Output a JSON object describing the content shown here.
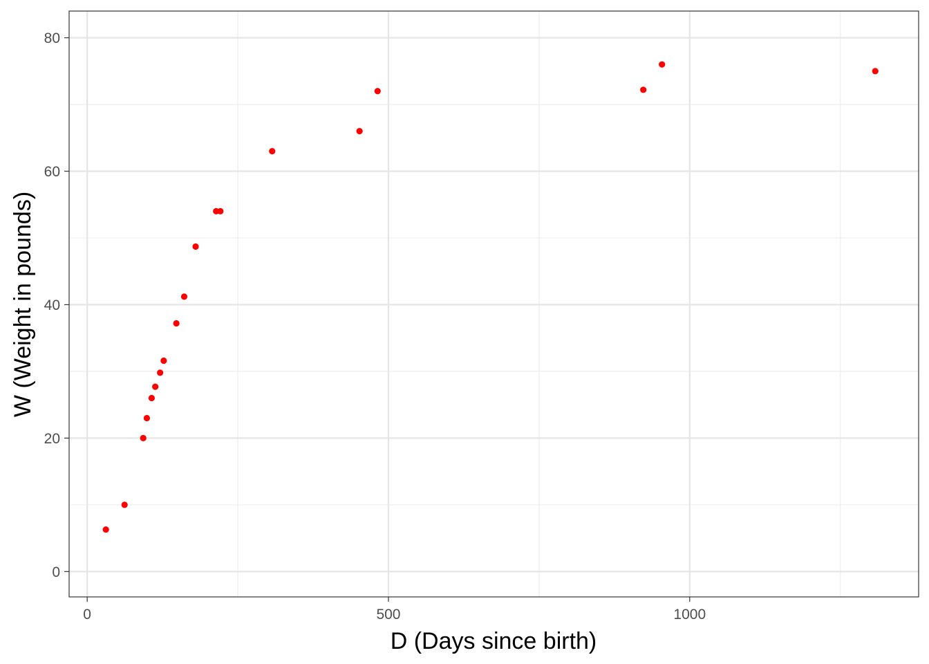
{
  "chart_data": {
    "type": "scatter",
    "title": "",
    "xlabel": "D (Days since birth)",
    "ylabel": "W (Weight in pounds)",
    "xlim": [
      -30,
      1380
    ],
    "ylim": [
      -3.8,
      84
    ],
    "x_ticks": [
      0,
      500,
      1000
    ],
    "x_tick_labels": [
      "0",
      "500",
      "1000"
    ],
    "x_minor_ticks": [
      250,
      750,
      1250
    ],
    "y_ticks": [
      0,
      20,
      40,
      60,
      80
    ],
    "y_tick_labels": [
      "0",
      "20",
      "40",
      "60",
      "80"
    ],
    "y_minor_ticks": [
      10,
      30,
      50,
      70
    ],
    "grid": true,
    "point_color": "#ff0000",
    "series": [
      {
        "points": [
          {
            "x": 31,
            "y": 6.3
          },
          {
            "x": 62,
            "y": 10
          },
          {
            "x": 93,
            "y": 20
          },
          {
            "x": 99,
            "y": 23
          },
          {
            "x": 107,
            "y": 26
          },
          {
            "x": 113,
            "y": 27.7
          },
          {
            "x": 121,
            "y": 29.8
          },
          {
            "x": 127,
            "y": 31.6
          },
          {
            "x": 148,
            "y": 37.2
          },
          {
            "x": 161,
            "y": 41.2
          },
          {
            "x": 180,
            "y": 48.7
          },
          {
            "x": 214,
            "y": 54
          },
          {
            "x": 221,
            "y": 54
          },
          {
            "x": 307,
            "y": 63
          },
          {
            "x": 452,
            "y": 66
          },
          {
            "x": 482,
            "y": 72
          },
          {
            "x": 923,
            "y": 72.2
          },
          {
            "x": 954,
            "y": 76
          },
          {
            "x": 1308,
            "y": 75
          }
        ]
      }
    ]
  }
}
